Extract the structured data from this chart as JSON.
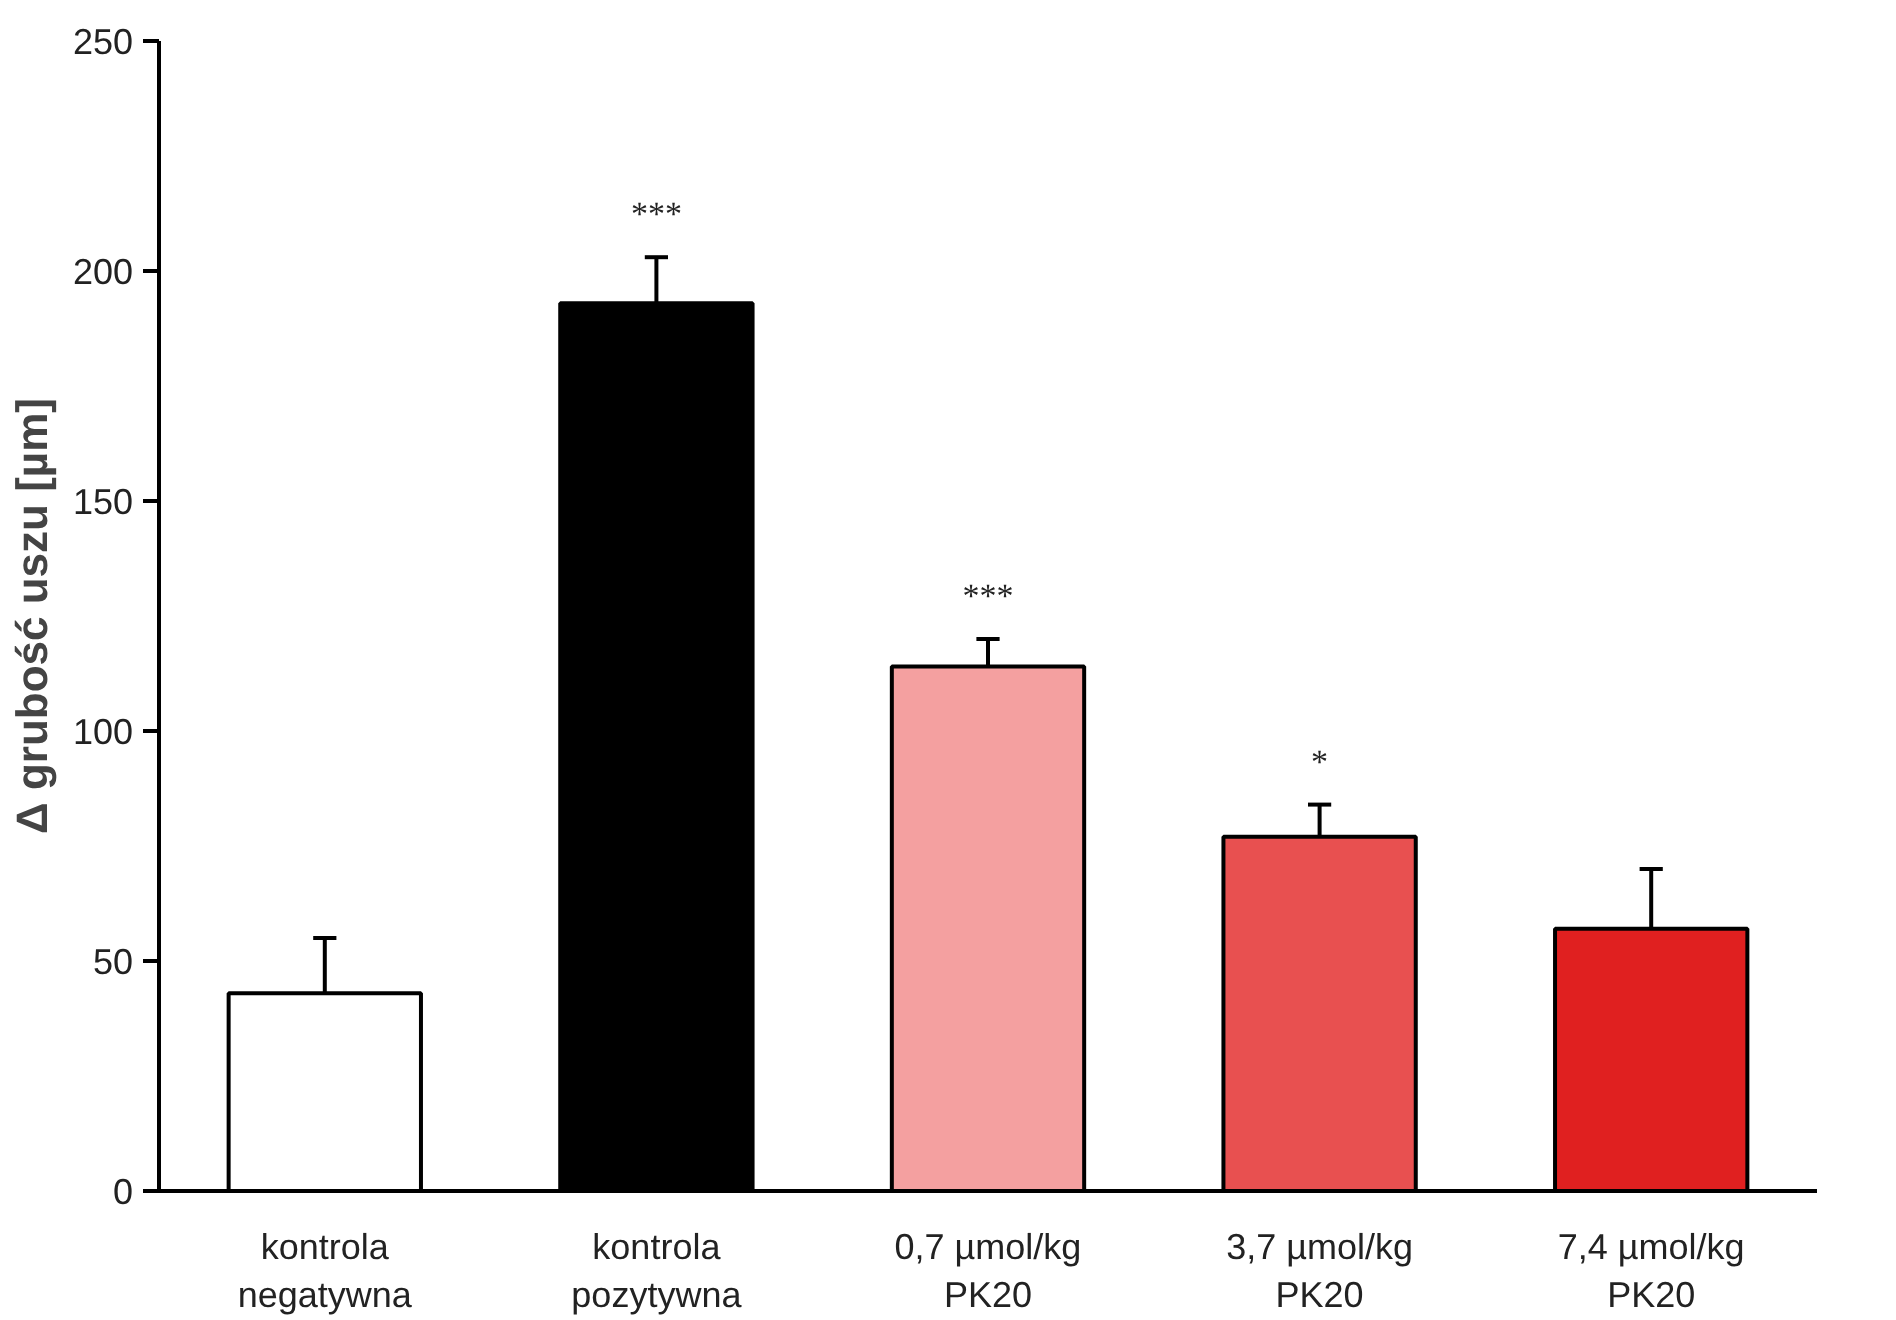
{
  "chart_data": {
    "type": "bar",
    "ylabel": "Δ grubość uszu [µm]",
    "categories": [
      "kontrola\nnegatywna",
      "kontrola\npozytywna",
      "0,7 µmol/kg\nPK20",
      "3,7 µmol/kg\nPK20",
      "7,4 µmol/kg\nPK20"
    ],
    "values": [
      43,
      193,
      114,
      77,
      57
    ],
    "errors": [
      [
        43,
        55
      ],
      [
        193,
        203
      ],
      [
        114,
        120
      ],
      [
        77,
        84
      ],
      [
        57,
        70
      ]
    ],
    "colors": [
      "#ffffff",
      "#000000",
      "#f4a0a0",
      "#e85050",
      "#e02020"
    ],
    "ylim": [
      0,
      250
    ],
    "yticks": [
      0,
      50,
      100,
      150,
      200,
      250
    ],
    "grid": false,
    "annotations": [
      {
        "text": "***",
        "x": "kontrola\npozytywna",
        "y": 203
      },
      {
        "text": "***",
        "x": "0,7 µmol/kg\nPK20",
        "y": 120
      },
      {
        "text": "*",
        "x": "3,7 µmol/kg\nPK20",
        "y": 84
      }
    ]
  }
}
